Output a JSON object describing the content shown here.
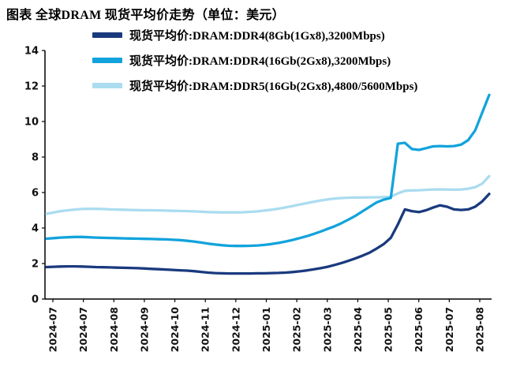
{
  "title": "图表 全球DRAM 现货平均价走势（单位：美元）",
  "chart_data": {
    "type": "line",
    "title": "全球DRAM 现货平均价走势",
    "unit": "美元",
    "grid": false,
    "legend_position": "top",
    "ylim": [
      0,
      14
    ],
    "y_ticks": [
      0,
      2,
      4,
      6,
      8,
      10,
      12,
      14
    ],
    "x_tick_labels": [
      "2024-07",
      "2024-07",
      "2024-08",
      "2024-09",
      "2024-10",
      "2024-11",
      "2024-12",
      "2025-01",
      "2025-02",
      "2025-03",
      "2025-04",
      "2025-05",
      "2025-06",
      "2025-07",
      "2025-08"
    ],
    "series": [
      {
        "name": "现货平均价:DRAM:DDR4(8Gb(1Gx8),3200Mbps)",
        "color": "#1a3a7e",
        "values": [
          1.8,
          1.82,
          1.83,
          1.84,
          1.84,
          1.83,
          1.82,
          1.8,
          1.79,
          1.78,
          1.77,
          1.76,
          1.75,
          1.74,
          1.72,
          1.7,
          1.68,
          1.66,
          1.64,
          1.62,
          1.6,
          1.57,
          1.53,
          1.49,
          1.46,
          1.45,
          1.44,
          1.44,
          1.44,
          1.44,
          1.45,
          1.45,
          1.46,
          1.47,
          1.49,
          1.52,
          1.56,
          1.61,
          1.67,
          1.74,
          1.82,
          1.92,
          2.03,
          2.16,
          2.3,
          2.45,
          2.62,
          2.85,
          3.1,
          3.45,
          4.2,
          5.05,
          4.95,
          4.9,
          5.0,
          5.15,
          5.28,
          5.2,
          5.05,
          5.02,
          5.05,
          5.2,
          5.5,
          5.92
        ]
      },
      {
        "name": "现货平均价:DRAM:DDR4(16Gb(2Gx8),3200Mbps)",
        "color": "#12a3dc",
        "values": [
          3.4,
          3.43,
          3.46,
          3.48,
          3.5,
          3.5,
          3.48,
          3.46,
          3.45,
          3.44,
          3.43,
          3.42,
          3.41,
          3.4,
          3.39,
          3.38,
          3.37,
          3.36,
          3.34,
          3.32,
          3.28,
          3.24,
          3.18,
          3.12,
          3.07,
          3.03,
          3.0,
          2.99,
          2.99,
          3.0,
          3.02,
          3.05,
          3.1,
          3.16,
          3.24,
          3.33,
          3.43,
          3.54,
          3.66,
          3.8,
          3.95,
          4.1,
          4.28,
          4.48,
          4.7,
          4.95,
          5.2,
          5.45,
          5.6,
          5.7,
          8.75,
          8.8,
          8.45,
          8.4,
          8.5,
          8.6,
          8.62,
          8.6,
          8.62,
          8.7,
          8.95,
          9.5,
          10.5,
          11.5
        ]
      },
      {
        "name": "现货平均价:DRAM:DDR5(16Gb(2Gx8),4800/5600Mbps)",
        "color": "#abdcf0",
        "values": [
          4.8,
          4.88,
          4.95,
          5.0,
          5.04,
          5.07,
          5.08,
          5.08,
          5.07,
          5.05,
          5.04,
          5.03,
          5.02,
          5.01,
          5.0,
          5.0,
          4.99,
          4.98,
          4.97,
          4.96,
          4.95,
          4.94,
          4.92,
          4.9,
          4.89,
          4.88,
          4.88,
          4.88,
          4.89,
          4.91,
          4.94,
          4.98,
          5.03,
          5.09,
          5.16,
          5.24,
          5.32,
          5.4,
          5.48,
          5.55,
          5.61,
          5.66,
          5.69,
          5.71,
          5.72,
          5.72,
          5.73,
          5.73,
          5.74,
          5.76,
          5.95,
          6.1,
          6.12,
          6.13,
          6.15,
          6.17,
          6.18,
          6.17,
          6.16,
          6.17,
          6.22,
          6.3,
          6.5,
          6.92
        ]
      }
    ]
  }
}
